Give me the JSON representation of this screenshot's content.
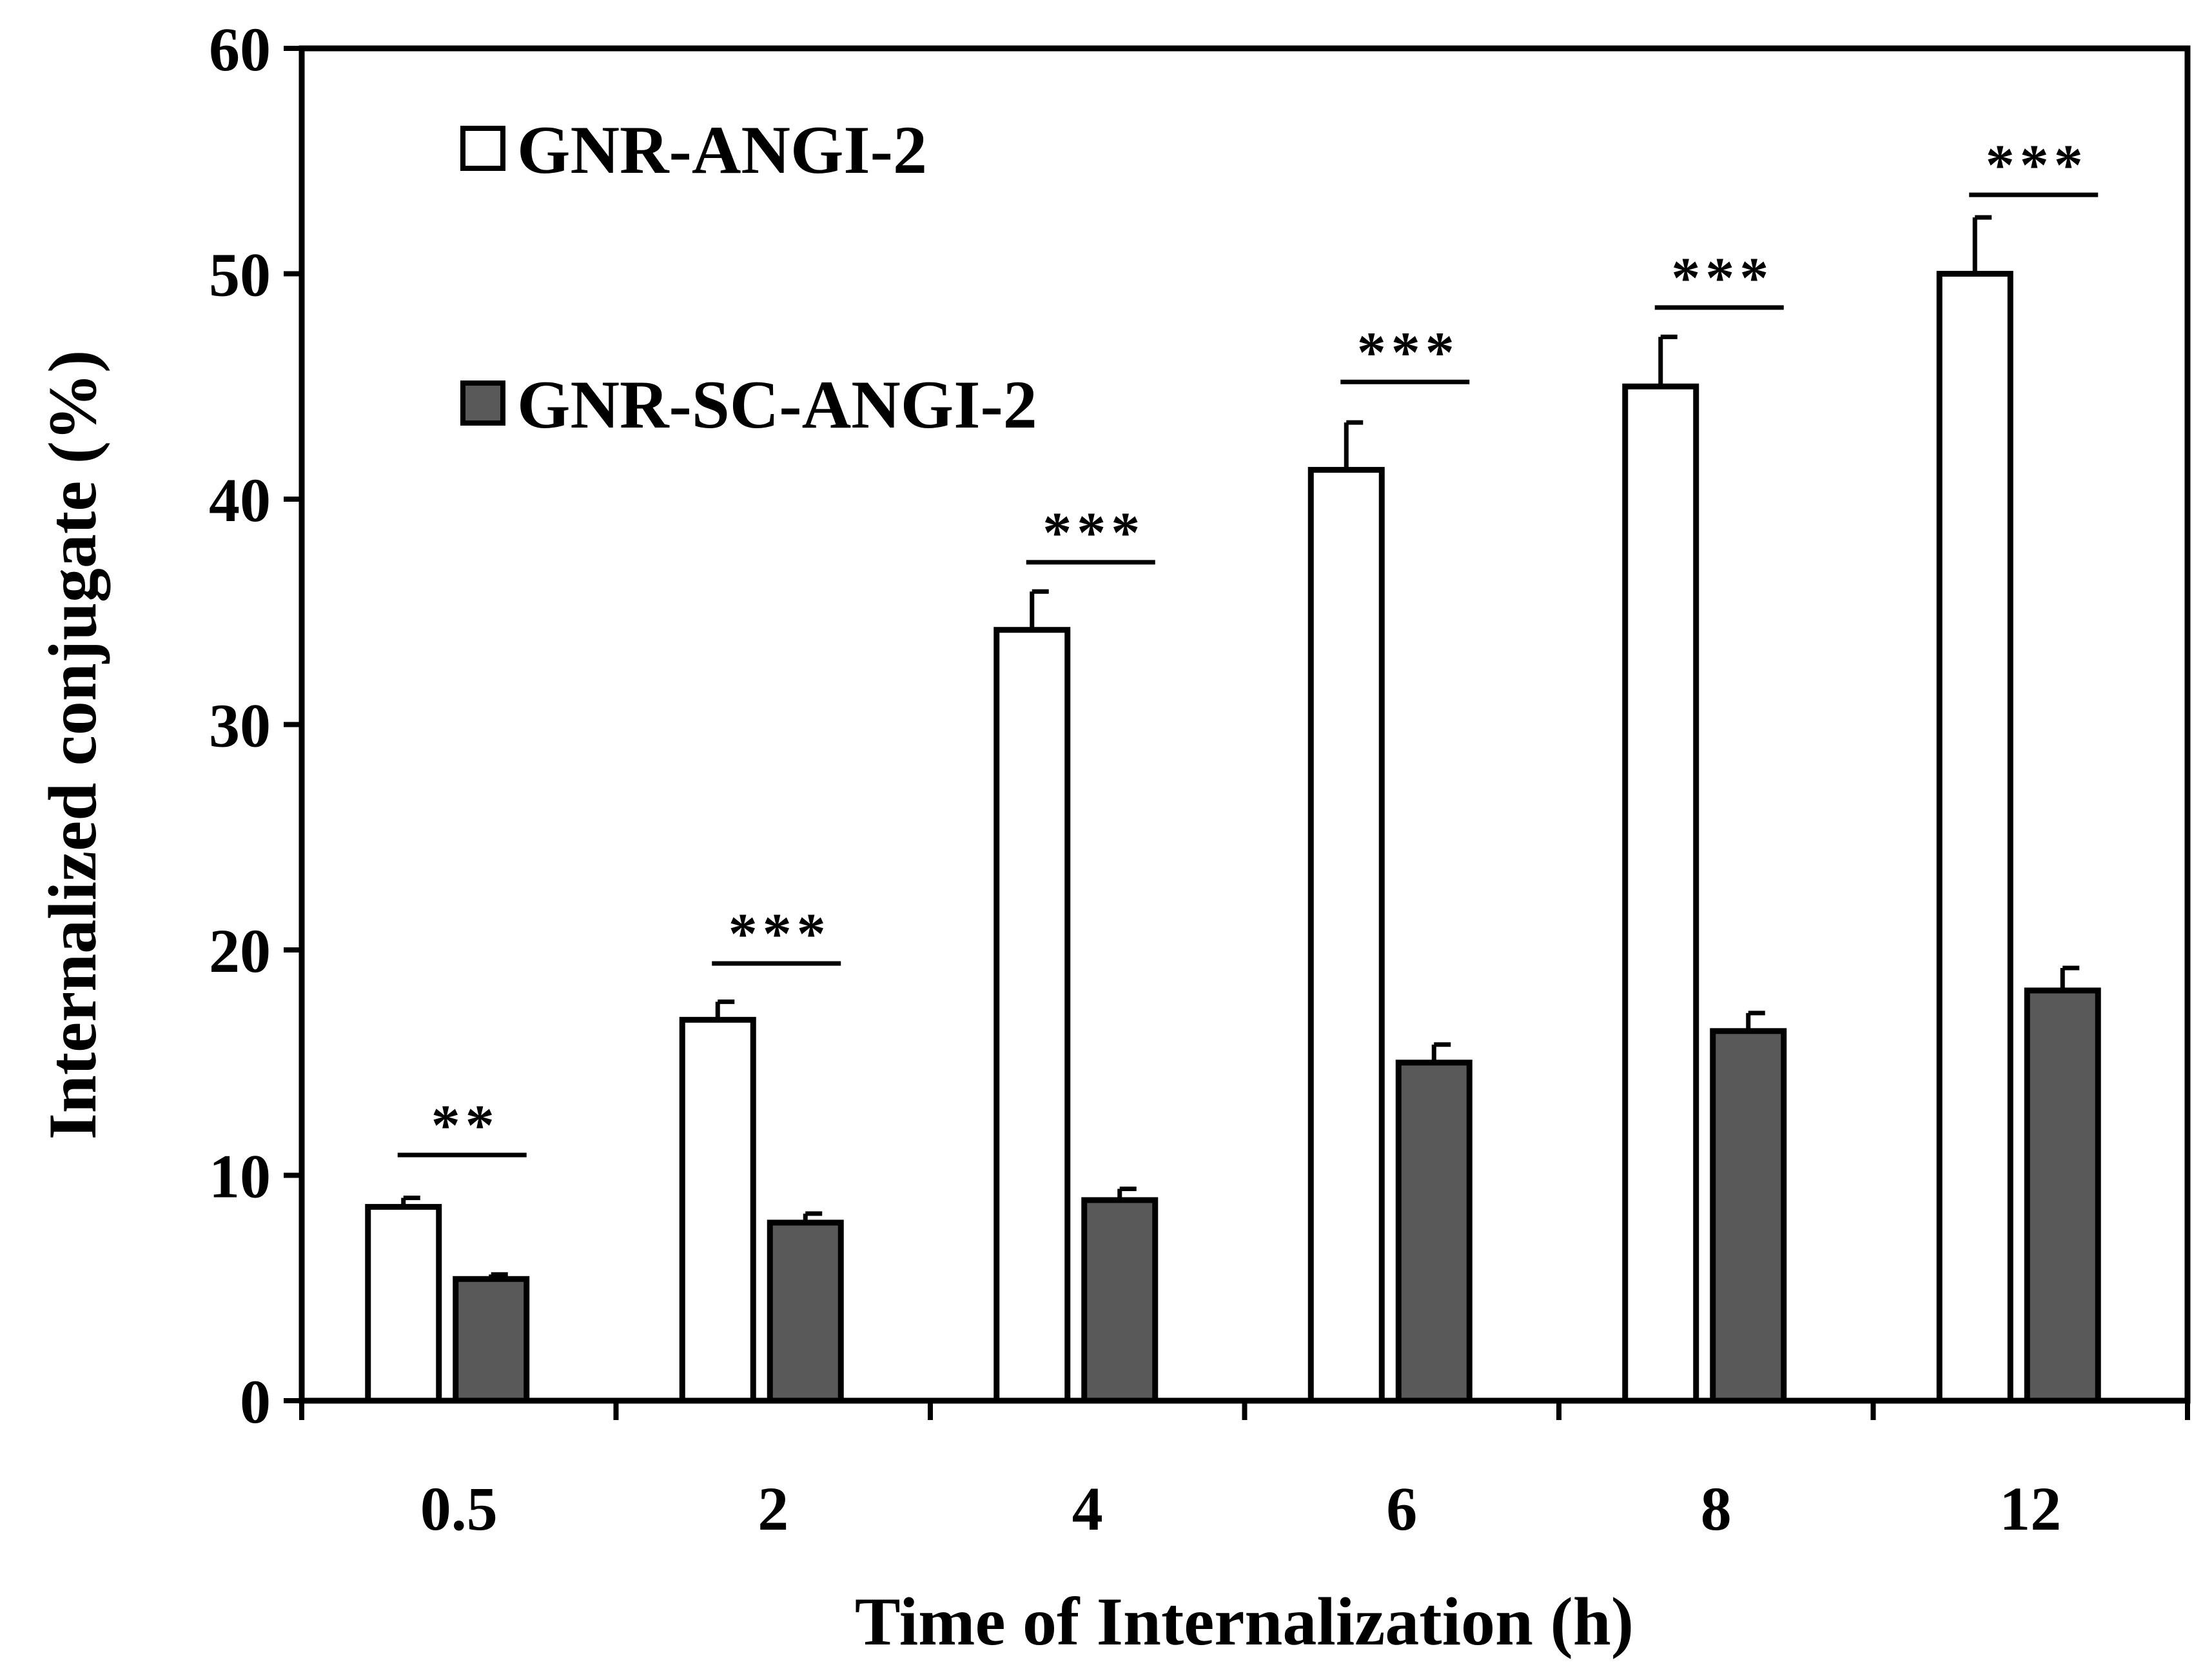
{
  "chart_data": {
    "type": "bar",
    "title": "",
    "xlabel": "Time of Internalization (h)",
    "ylabel": "Internalized conjugate (%)",
    "ylim": [
      0,
      60
    ],
    "yticks": [
      "0",
      "10",
      "20",
      "30",
      "40",
      "50",
      "60"
    ],
    "categories": [
      "0.5",
      "2",
      "4",
      "6",
      "8",
      "12"
    ],
    "series": [
      {
        "name": "GNR-ANGI-2",
        "color": "#ffffff",
        "values": [
          8.6,
          16.9,
          34.2,
          41.3,
          45.0,
          50.0
        ],
        "errors": [
          0.4,
          0.8,
          1.7,
          2.1,
          2.2,
          2.5
        ]
      },
      {
        "name": "GNR-SC-ANGI-2",
        "color": "#595959",
        "values": [
          5.4,
          7.9,
          8.9,
          15.0,
          16.4,
          18.2
        ],
        "errors": [
          0.2,
          0.4,
          0.5,
          0.8,
          0.8,
          1.0
        ]
      }
    ],
    "significance": [
      {
        "category": "0.5",
        "label": "**",
        "y": 10.9
      },
      {
        "category": "2",
        "label": "***",
        "y": 19.4
      },
      {
        "category": "4",
        "label": "***",
        "y": 37.2
      },
      {
        "category": "6",
        "label": "***",
        "y": 45.2
      },
      {
        "category": "8",
        "label": "***",
        "y": 48.5
      },
      {
        "category": "12",
        "label": "***",
        "y": 53.5
      }
    ],
    "legend_position": "top-left",
    "grid": false
  }
}
